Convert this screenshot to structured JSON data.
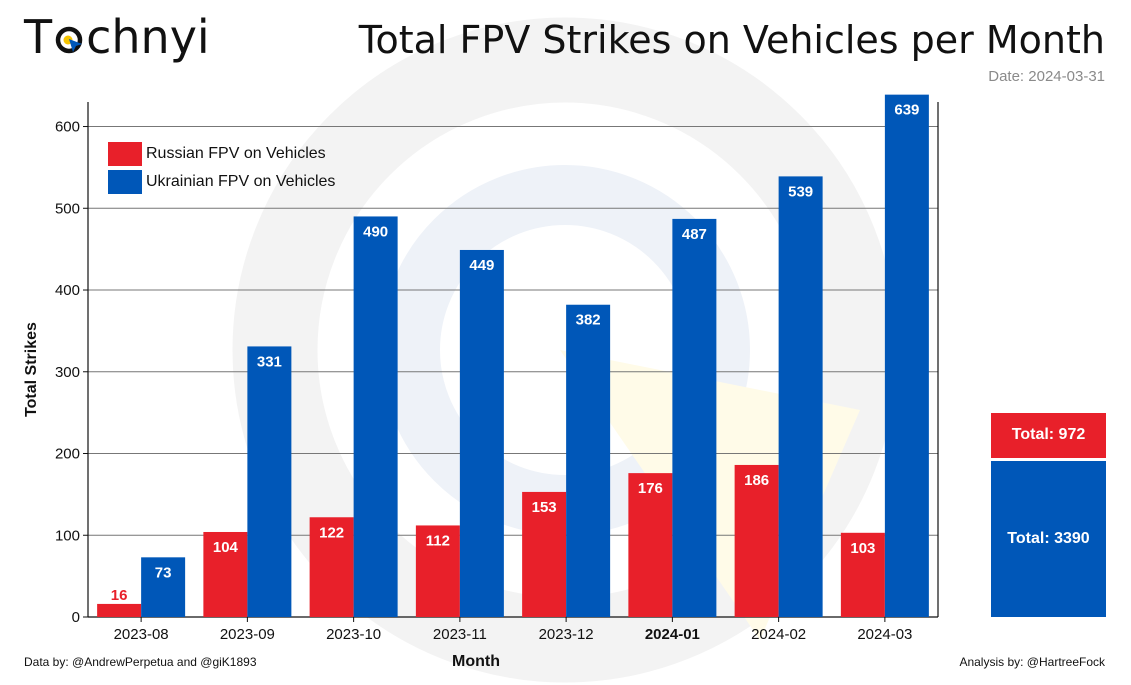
{
  "brand": {
    "logo_text_prefix": "T",
    "logo_text_suffix": "chnyi"
  },
  "header": {
    "title": "Total FPV Strikes on Vehicles per Month",
    "date_label": "Date: 2024-03-31"
  },
  "footer": {
    "data_credit": "Data by: @AndrewPerpetua and @giK1893",
    "analysis_credit": "Analysis by: @HartreeFock"
  },
  "colors": {
    "russian": "#e8202a",
    "ukrainian": "#0057b8",
    "grid": "#777777",
    "watermark": "#f2f2f2"
  },
  "totals": {
    "russian_label": "Total: 972",
    "ukrainian_label": "Total: 3390",
    "russian": 972,
    "ukrainian": 3390
  },
  "chart_data": {
    "type": "bar",
    "title": "Total FPV Strikes on Vehicles per Month",
    "xlabel": "Month",
    "ylabel": "Total Strikes",
    "ylim": [
      0,
      630
    ],
    "yticks": [
      0,
      100,
      200,
      300,
      400,
      500,
      600
    ],
    "grid": true,
    "legend_position": "top-left",
    "categories": [
      "2023-08",
      "2023-09",
      "2023-10",
      "2023-11",
      "2023-12",
      "2024-01",
      "2024-02",
      "2024-03"
    ],
    "highlighted_category": "2024-01",
    "series": [
      {
        "name": "Russian FPV on Vehicles",
        "values": [
          16,
          104,
          122,
          112,
          153,
          176,
          186,
          103
        ]
      },
      {
        "name": "Ukrainian FPV on Vehicles",
        "values": [
          73,
          331,
          490,
          449,
          382,
          487,
          539,
          639
        ]
      }
    ]
  }
}
